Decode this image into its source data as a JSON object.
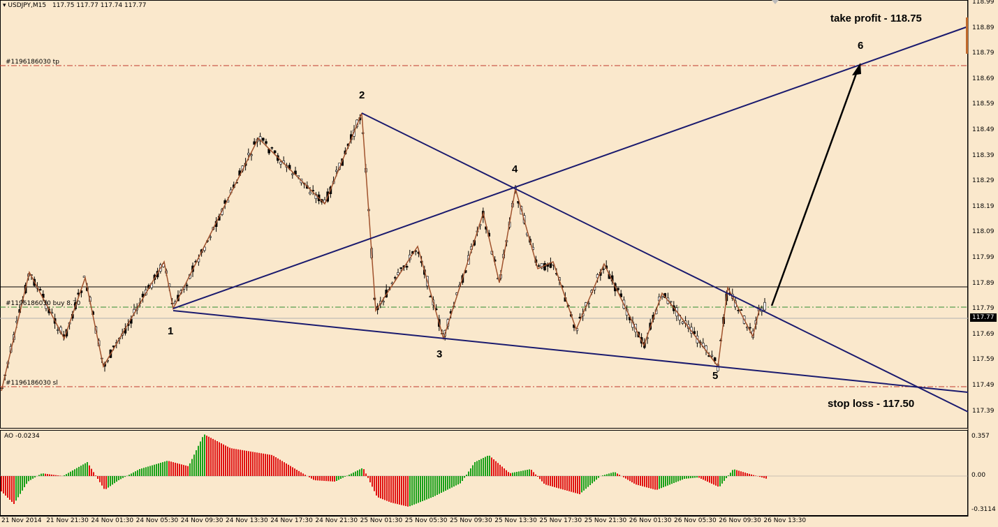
{
  "header": {
    "symbol": "USDJPY,M15",
    "ohlc": "117.75 117.77 117.74 117.77"
  },
  "order_labels": {
    "tp": "#1196186030 tp",
    "buy": "#1196186030 buy 8.70",
    "sl": "#1196186030 sl"
  },
  "annotations": {
    "take_profit": "take profit - 118.75",
    "stop_loss": "stop loss - 117.50",
    "wave_1": "1",
    "wave_2": "2",
    "wave_3": "3",
    "wave_4": "4",
    "wave_5": "5",
    "wave_6": "6"
  },
  "current_price": "117.77",
  "indicator": {
    "label": "AO -0.0234",
    "scale_top": "0.357",
    "scale_zero": "0.00",
    "scale_bottom": "-0.3114"
  },
  "price_axis": [
    "118.99",
    "118.89",
    "118.79",
    "118.69",
    "118.59",
    "118.49",
    "118.39",
    "118.29",
    "118.19",
    "118.09",
    "117.99",
    "117.89",
    "117.79",
    "117.69",
    "117.59",
    "117.49",
    "117.39"
  ],
  "time_axis": [
    "21 Nov 2014",
    "21 Nov 21:30",
    "24 Nov 01:30",
    "24 Nov 05:30",
    "24 Nov 09:30",
    "24 Nov 13:30",
    "24 Nov 17:30",
    "24 Nov 21:30",
    "25 Nov 01:30",
    "25 Nov 05:30",
    "25 Nov 09:30",
    "25 Nov 13:30",
    "25 Nov 17:30",
    "25 Nov 21:30",
    "26 Nov 01:30",
    "26 Nov 05:30",
    "26 Nov 09:30",
    "26 Nov 13:30"
  ],
  "colors": {
    "background": "#fae8cc",
    "bull_bar": "#18a018",
    "bear_bar": "#e01010",
    "trendline": "#1a1a6e",
    "zigzag": "#a0522d",
    "level_line": "#c0392b",
    "buy_line": "#2e8b2e"
  }
}
